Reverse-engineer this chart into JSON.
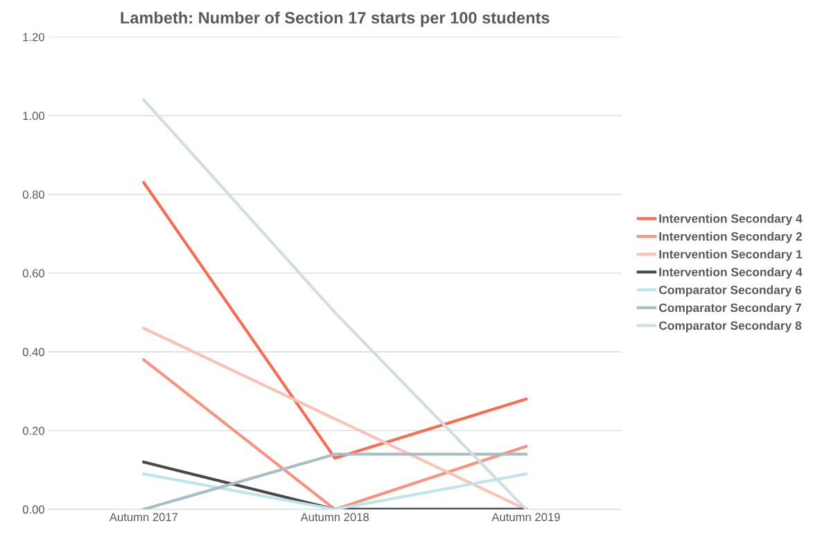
{
  "chart_data": {
    "type": "line",
    "title": "Lambeth: Number of Section 17 starts per 100 students",
    "categories": [
      "Autumn 2017",
      "Autumn 2018",
      "Autumn 2019"
    ],
    "series": [
      {
        "name": "Intervention Secondary 4",
        "color": "#fc6a4f",
        "values": [
          0.83,
          0.13,
          0.28
        ]
      },
      {
        "name": "Intervention Secondary 2",
        "color": "#f8937f",
        "values": [
          0.38,
          0.0,
          0.16
        ]
      },
      {
        "name": "Intervention Secondary 1",
        "color": "#f9c2b6",
        "values": [
          0.46,
          0.23,
          0.0
        ]
      },
      {
        "name": "Intervention Secondary 4",
        "color": "#48474a",
        "values": [
          0.12,
          0.0,
          0.0
        ]
      },
      {
        "name": "Comparator Secondary 6",
        "color": "#bde5ea",
        "values": [
          0.09,
          0.0,
          0.09
        ]
      },
      {
        "name": "Comparator Secondary 7",
        "color": "#a8bec4",
        "values": [
          0.0,
          0.14,
          0.14
        ]
      },
      {
        "name": "Comparator Secondary 8",
        "color": "#d0dde2",
        "values": [
          1.04,
          0.5,
          0.0
        ]
      }
    ],
    "ylim": [
      0,
      1.2
    ],
    "yticks": [
      {
        "value": 0,
        "label": "0.00"
      },
      {
        "value": 0.2,
        "label": "0.20"
      },
      {
        "value": 0.4,
        "label": "0.40"
      },
      {
        "value": 0.6,
        "label": "0.60"
      },
      {
        "value": 0.8,
        "label": "0.80"
      },
      {
        "value": 1.0,
        "label": "1.00"
      },
      {
        "value": 1.2,
        "label": "1.20"
      }
    ],
    "grid": "y",
    "legend": "right",
    "marker": "none",
    "line_style": "solid"
  }
}
